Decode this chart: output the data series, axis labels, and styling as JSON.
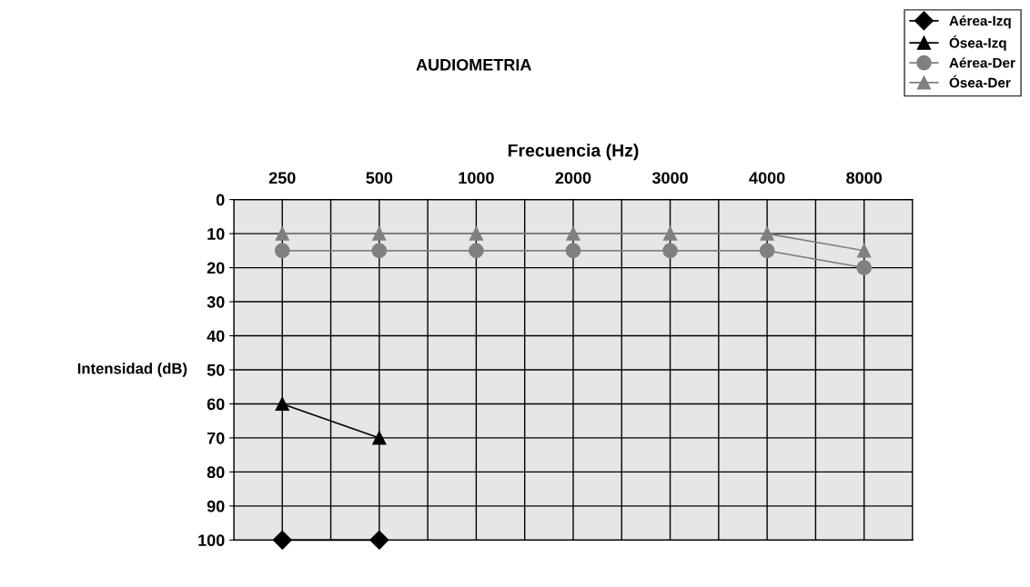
{
  "chart_data": {
    "type": "line",
    "title": "AUDIOMETRIA",
    "xlabel": "Frecuencia (Hz)",
    "ylabel": "Intensidad (dB)",
    "categories": [
      "250",
      "500",
      "1000",
      "2000",
      "3000",
      "4000",
      "8000"
    ],
    "ylim": [
      100,
      0
    ],
    "yticks": [
      0,
      10,
      20,
      30,
      40,
      50,
      60,
      70,
      80,
      90,
      100
    ],
    "grid": true,
    "legend": "top right",
    "series": [
      {
        "name": "Aérea-Izq",
        "color": "#000000",
        "marker": "diamond",
        "values": [
          100,
          100,
          null,
          null,
          null,
          null,
          null
        ]
      },
      {
        "name": "Ósea-Izq",
        "color": "#000000",
        "marker": "triangle",
        "values": [
          60,
          70,
          null,
          null,
          null,
          null,
          null
        ]
      },
      {
        "name": "Aérea-Der",
        "color": "#808080",
        "marker": "circle",
        "values": [
          15,
          15,
          15,
          15,
          15,
          15,
          20
        ]
      },
      {
        "name": "Ósea-Der",
        "color": "#808080",
        "marker": "triangle",
        "values": [
          10,
          10,
          10,
          10,
          10,
          10,
          15
        ]
      }
    ]
  }
}
